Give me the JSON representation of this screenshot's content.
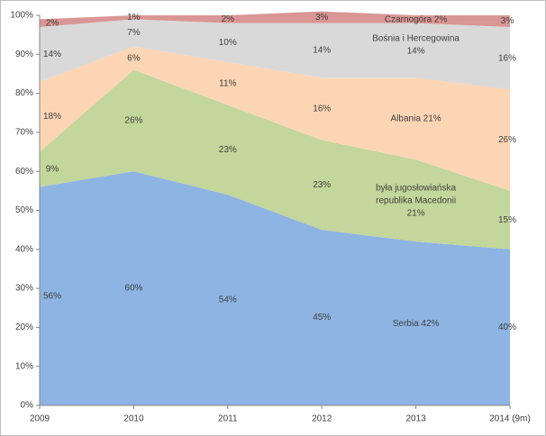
{
  "chart_data": {
    "type": "stacked-area-percent",
    "categories": [
      "2009",
      "2010",
      "2011",
      "2012",
      "2013",
      "2014 (9m)"
    ],
    "ylim": [
      0,
      100
    ],
    "yticks": [
      {
        "value": 0,
        "label": "0%"
      },
      {
        "value": 10,
        "label": "10%"
      },
      {
        "value": 20,
        "label": "20%"
      },
      {
        "value": 30,
        "label": "30%"
      },
      {
        "value": 40,
        "label": "40%"
      },
      {
        "value": 50,
        "label": "50%"
      },
      {
        "value": 60,
        "label": "60%"
      },
      {
        "value": 70,
        "label": "70%"
      },
      {
        "value": 80,
        "label": "80%"
      },
      {
        "value": 90,
        "label": "90%"
      },
      {
        "value": 100,
        "label": "100%"
      }
    ],
    "series": [
      {
        "name": "Serbia",
        "color": "#8eb4e3",
        "values": [
          56,
          60,
          54,
          45,
          42,
          40
        ],
        "value_labels": [
          "56%",
          "60%",
          "54%",
          "45%",
          "42%",
          "40%"
        ]
      },
      {
        "name": "była jugosłowiańska republika Macedonii",
        "color": "#c3d69b",
        "values": [
          9,
          26,
          23,
          23,
          21,
          15
        ],
        "value_labels": [
          "9%",
          "26%",
          "23%",
          "23%",
          "21%",
          "15%"
        ]
      },
      {
        "name": "Albania",
        "color": "#fcd5b5",
        "values": [
          18,
          6,
          11,
          16,
          21,
          26
        ],
        "value_labels": [
          "18%",
          "6%",
          "11%",
          "16%",
          "21%",
          "26%"
        ]
      },
      {
        "name": "Bośnia i Hercegowina",
        "color": "#d9d9d9",
        "values": [
          14,
          7,
          10,
          14,
          14,
          16
        ],
        "value_labels": [
          "14%",
          "7%",
          "10%",
          "14%",
          "14%",
          "16%"
        ]
      },
      {
        "name": "Czarnogóra",
        "color": "#d99694",
        "values": [
          2,
          1,
          2,
          3,
          2,
          3
        ],
        "value_labels": [
          "2%",
          "1%",
          "2%",
          "3%",
          "2%",
          "3%"
        ]
      }
    ]
  }
}
